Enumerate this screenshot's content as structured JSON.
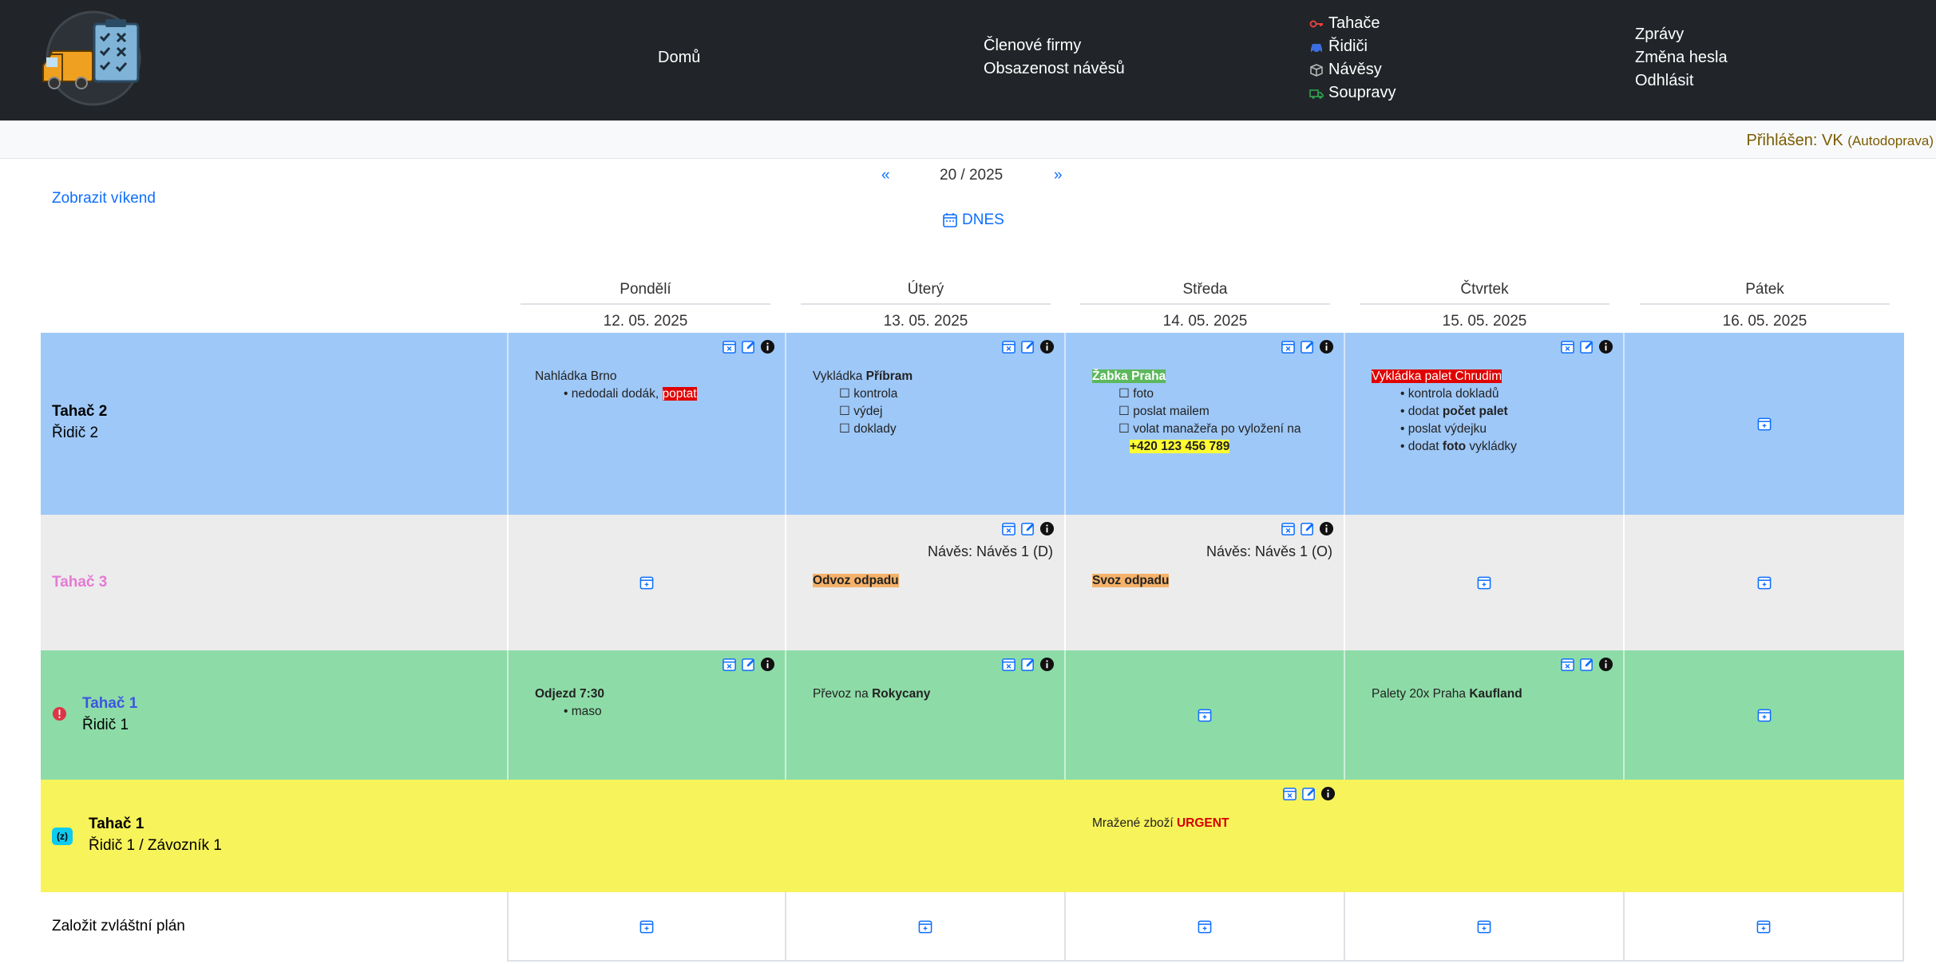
{
  "nav": {
    "home": "Domů",
    "members": "Členové firmy",
    "trailer_occupancy": "Obsazenost návěsů",
    "tractors": "Tahače",
    "drivers": "Řidiči",
    "trailers": "Návěsy",
    "sets": "Soupravy",
    "messages": "Zprávy",
    "change_password": "Změna hesla",
    "logout": "Odhlásit"
  },
  "logged_in": {
    "prefix": "Přihlášen: VK",
    "company": "(Autodoprava)"
  },
  "toolbar": {
    "show_weekend": "Zobrazit víkend",
    "prev": "«",
    "week": "20 / 2025",
    "next": "»",
    "today": "DNES"
  },
  "days": [
    {
      "name": "Pondělí",
      "date": "12. 05. 2025"
    },
    {
      "name": "Úterý",
      "date": "13. 05. 2025"
    },
    {
      "name": "Středa",
      "date": "14. 05. 2025"
    },
    {
      "name": "Čtvrtek",
      "date": "15. 05. 2025"
    },
    {
      "name": "Pátek",
      "date": "16. 05. 2025"
    }
  ],
  "rows": [
    {
      "tractor": "Tahač 2",
      "driver": "Řidič 2",
      "color": "#9ec8f8"
    },
    {
      "tractor": "Tahač 3",
      "driver": "",
      "color": "#ececec",
      "tractor_color": "#e47ad4"
    },
    {
      "tractor": "Tahač 1",
      "driver": "Řidič 1",
      "color": "#8ddca7",
      "tractor_color": "#3d56e0"
    },
    {
      "tractor": "Tahač 1",
      "driver": "Řidič 1 / Závozník 1",
      "badge": "(z)",
      "color": "#f7f35a"
    }
  ],
  "cells": {
    "r1_mon": {
      "title": "Nahládka Brno",
      "b1": "nedodali dodák,",
      "b1_hl": "poptat"
    },
    "r1_tue": {
      "title_pre": "Vykládka ",
      "title_bold": "Příbram",
      "c1": "kontrola",
      "c2": "výdej",
      "c3": "doklady"
    },
    "r1_wed": {
      "title": "Žabka Praha",
      "c1": "foto",
      "c2": "poslat mailem",
      "c3": "volat manažeřa po vyložení na",
      "phone": "+420 123 456 789"
    },
    "r1_thu": {
      "title": "Vykládka palet Chrudim",
      "b1": "kontrola dokladů",
      "b2_pre": "dodat ",
      "b2_bold": "počet palet",
      "b3": "poslat výdejku",
      "b4_pre": "dodat ",
      "b4_bold": "foto",
      "b4_post": " vykládky"
    },
    "r2_tue": {
      "naves": "Návěs: Návěs 1 (D)",
      "title": "Odvoz odpadu"
    },
    "r2_wed": {
      "naves": "Návěs: Návěs 1 (O)",
      "title": "Svoz odpadu"
    },
    "r3_mon": {
      "title": "Odjezd 7:30",
      "b1": "maso"
    },
    "r3_tue": {
      "title_pre": "Převoz na ",
      "title_bold": "Rokycany"
    },
    "r3_thu": {
      "title_pre": "Palety 20x Praha ",
      "title_bold": "Kaufland"
    },
    "r4_wed": {
      "title_pre": "Mražené zboží ",
      "title_bold": "URGENT"
    }
  },
  "footer_row": {
    "label": "Založit zvláštní plán"
  },
  "colors": {
    "navbar": "#212529",
    "link": "#0d6efd",
    "info": "#111111",
    "danger": "#dc3545",
    "badge": "#0dcaf0"
  }
}
